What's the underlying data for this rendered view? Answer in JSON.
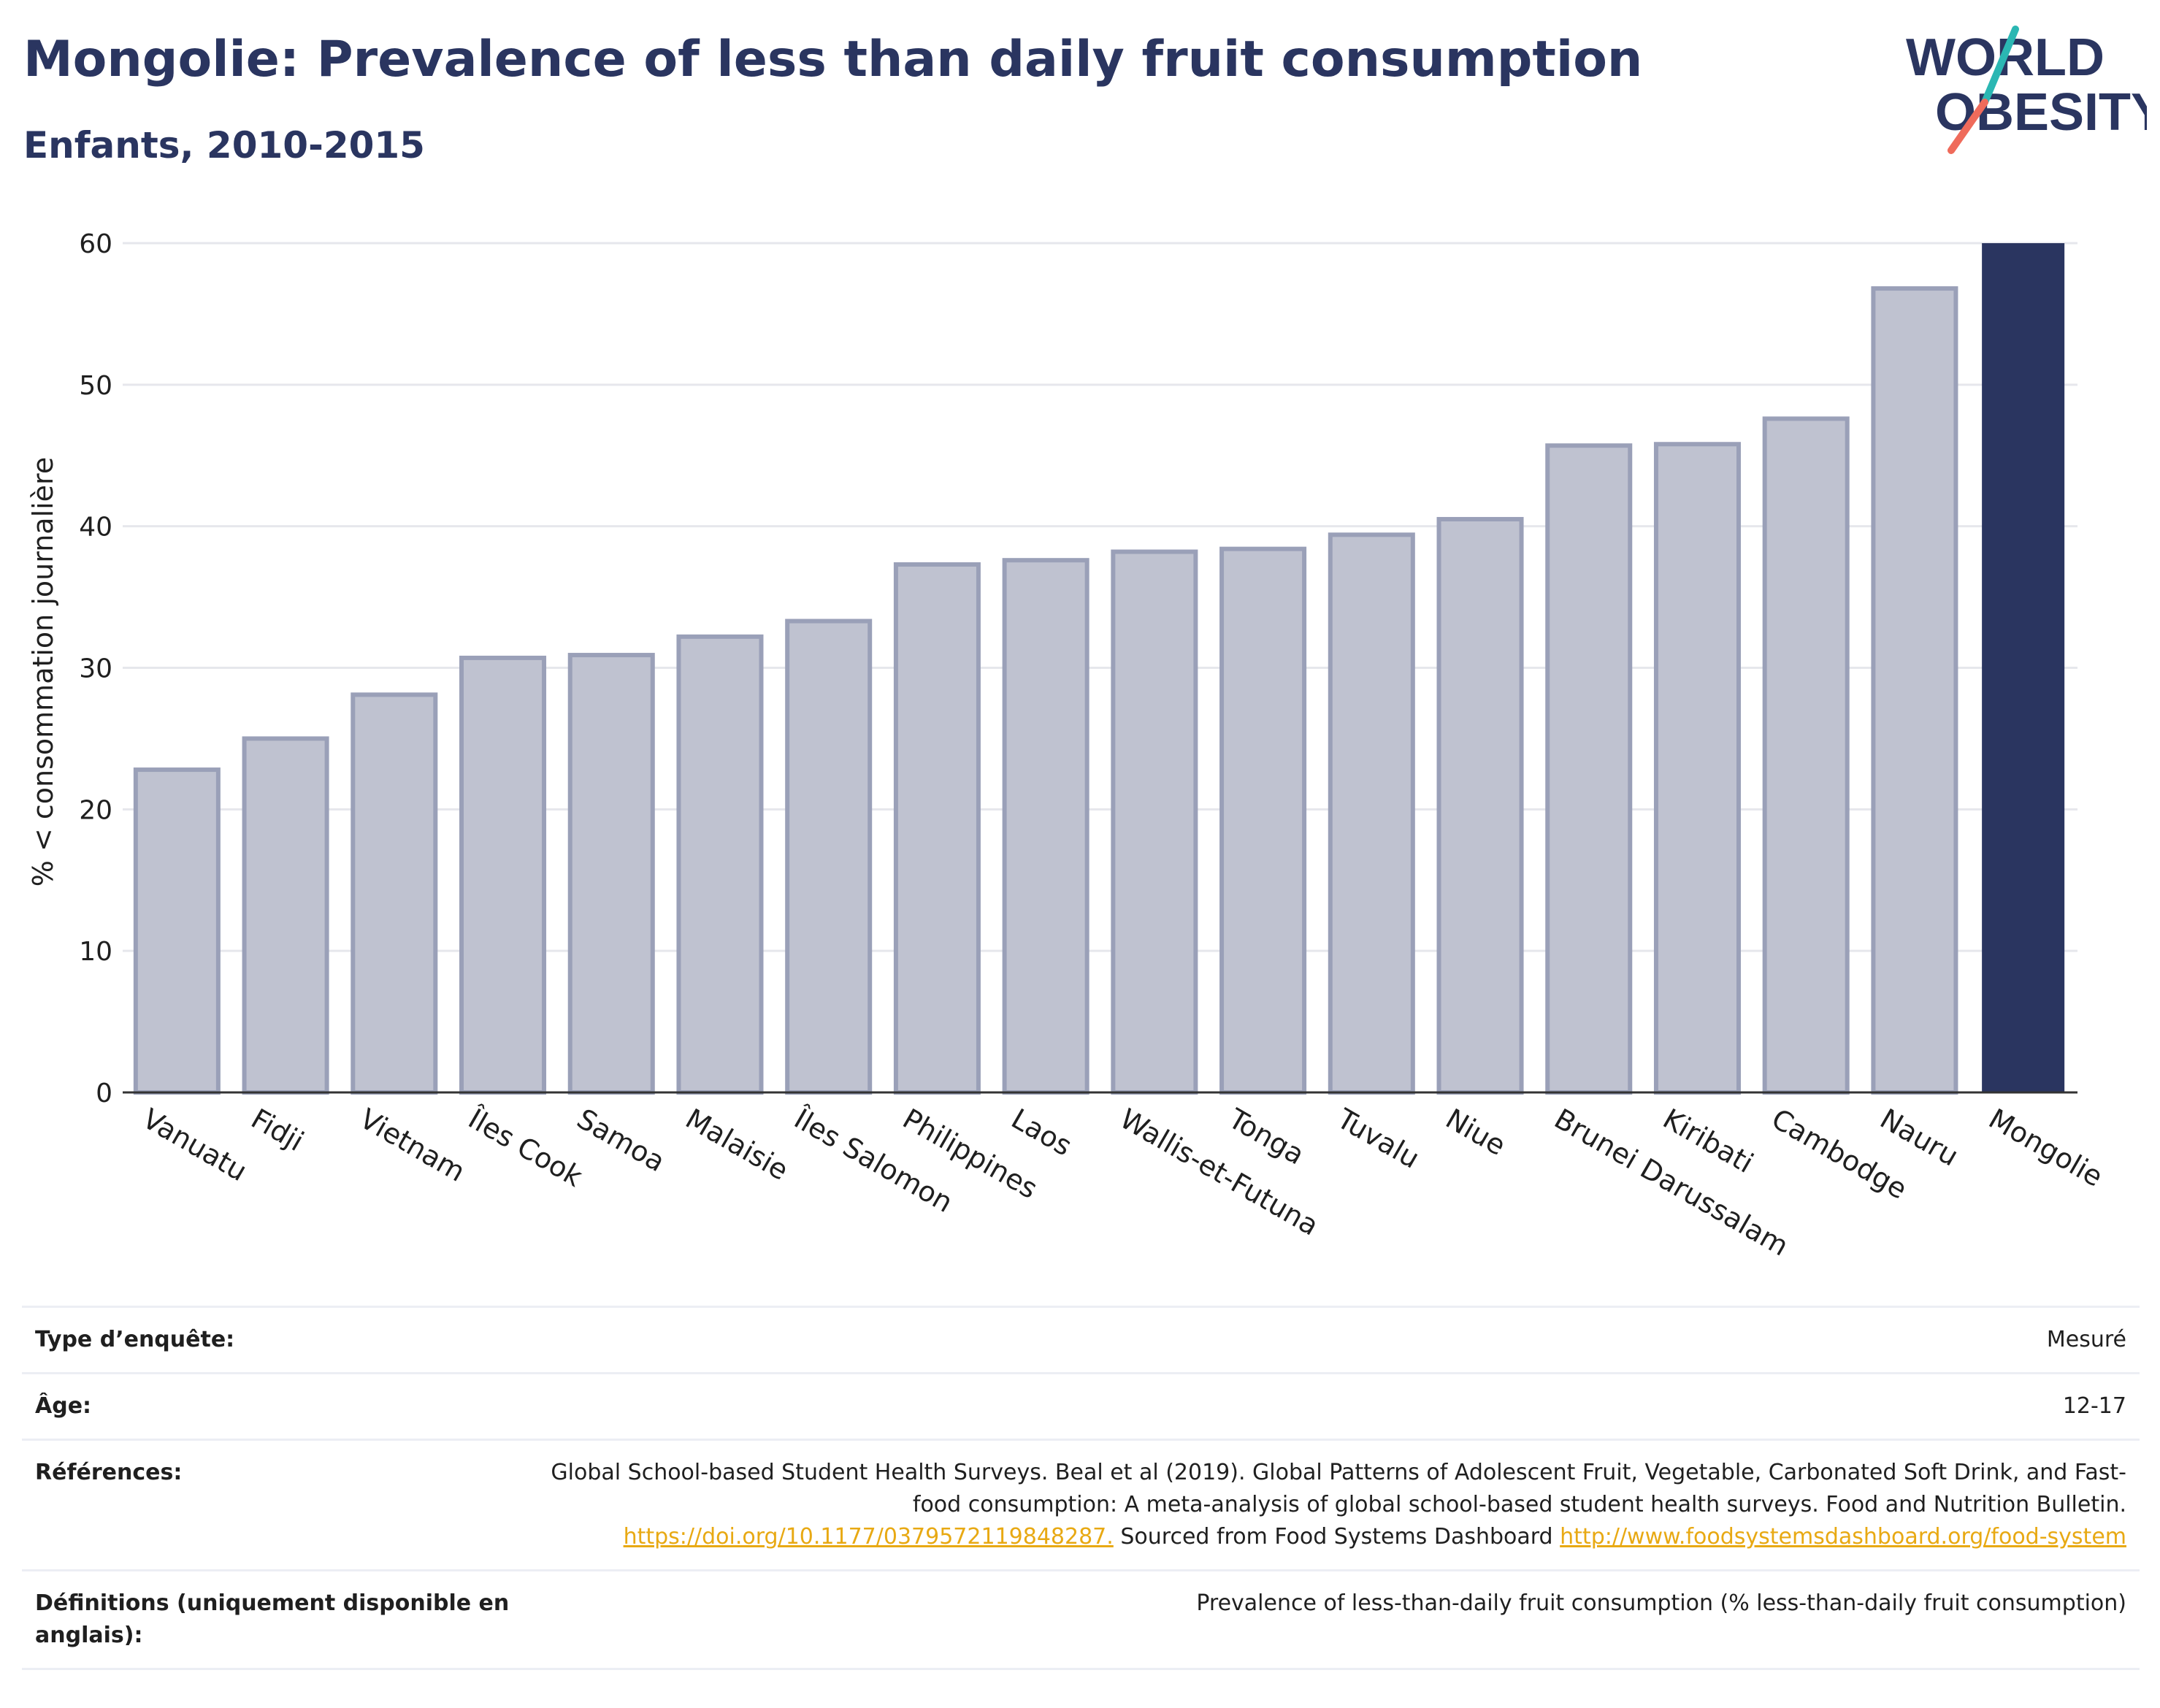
{
  "header": {
    "title": "Mongolie: Prevalence of less than daily fruit consumption",
    "subtitle": "Enfants, 2010-2015"
  },
  "logo": {
    "line1": "WORLD",
    "line2": "OBESITY",
    "accent_teal": "#2bb7b3",
    "accent_red": "#ef6b5b"
  },
  "colors": {
    "bar_fill": "#bfc2d0",
    "bar_stroke": "#9aa0b8",
    "highlight": "#2a3560",
    "grid": "#e6e7ec"
  },
  "chart_data": {
    "type": "bar",
    "ylabel": "% < consommation journalière",
    "ylim": [
      0,
      60
    ],
    "yticks": [
      0,
      10,
      20,
      30,
      40,
      50,
      60
    ],
    "grid": true,
    "highlight": "Mongolie",
    "categories": [
      "Vanuatu",
      "Fidji",
      "Vietnam",
      "Îles Cook",
      "Samoa",
      "Malaisie",
      "Îles Salomon",
      "Philippines",
      "Laos",
      "Wallis-et-Futuna",
      "Tonga",
      "Tuvalu",
      "Niue",
      "Brunei Darussalam",
      "Kiribati",
      "Cambodge",
      "Nauru",
      "Mongolie"
    ],
    "values": [
      22.8,
      25.0,
      28.1,
      30.7,
      30.9,
      32.2,
      33.3,
      37.3,
      37.6,
      38.2,
      38.4,
      39.4,
      40.5,
      45.7,
      45.8,
      47.6,
      56.8,
      60.0
    ]
  },
  "info": {
    "survey_type_label": "Type d’enquête:",
    "survey_type_value": "Mesuré",
    "age_label": "Âge:",
    "age_value": "12-17",
    "references_label": "Références:",
    "references_text1": "Global School-based Student Health Surveys. Beal et al (2019). Global Patterns of Adolescent Fruit, Vegetable, Carbonated Soft Drink, and Fast-food consumption: A meta-analysis of global school-based student health surveys. Food and Nutrition Bulletin.",
    "references_link1": "https://doi.org/10.1177/0379572119848287.",
    "references_text2": "Sourced from Food Systems Dashboard",
    "references_link2": "http://www.foodsystemsdashboard.org/food-system",
    "definitions_label": "Définitions (uniquement disponible en anglais):",
    "definitions_value": "Prevalence of less-than-daily fruit consumption (% less-than-daily fruit consumption)"
  }
}
